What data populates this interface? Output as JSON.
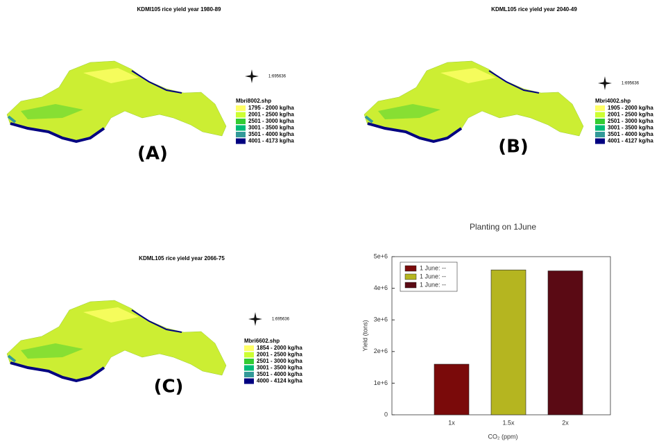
{
  "maps": [
    {
      "title": "KDMI105 rice yield year 1980-89",
      "scale": "1:695636",
      "legend_title": "Mbri8002.shp",
      "panel_label": "(A)",
      "legend": [
        {
          "label": "1795 - 2000 kg/ha",
          "color": "#ffff66"
        },
        {
          "label": "2001 - 2500 kg/ha",
          "color": "#ccff33"
        },
        {
          "label": "2501 - 3000 kg/ha",
          "color": "#33cc33"
        },
        {
          "label": "3001 - 3500 kg/ha",
          "color": "#00bb77"
        },
        {
          "label": "3501 - 4000 kg/ha",
          "color": "#339999"
        },
        {
          "label": "4001 - 4173 kg/ha",
          "color": "#000080"
        }
      ]
    },
    {
      "title": "KDML105 rice yield year 2040-49",
      "scale": "1:695636",
      "legend_title": "Mbri4002.shp",
      "panel_label": "(B)",
      "legend": [
        {
          "label": "1905 - 2000 kg/ha",
          "color": "#ffff66"
        },
        {
          "label": "2001 - 2500 kg/ha",
          "color": "#ccff33"
        },
        {
          "label": "2501 - 3000 kg/ha",
          "color": "#33cc33"
        },
        {
          "label": "3001 - 3500 kg/ha",
          "color": "#00bb77"
        },
        {
          "label": "3501 - 4000 kg/ha",
          "color": "#339999"
        },
        {
          "label": "4001 - 4127 kg/ha",
          "color": "#000080"
        }
      ]
    },
    {
      "title": "KDML105 rice yield year 2066-75",
      "scale": "1:695636",
      "legend_title": "Mbri6602.shp",
      "panel_label": "(C)",
      "legend": [
        {
          "label": "1854 - 2000 kg/ha",
          "color": "#ffff66"
        },
        {
          "label": "2001 - 2500 kg/ha",
          "color": "#ccff33"
        },
        {
          "label": "2501 - 3000 kg/ha",
          "color": "#33cc33"
        },
        {
          "label": "3001 - 3500 kg/ha",
          "color": "#00bb77"
        },
        {
          "label": "3501 - 4000 kg/ha",
          "color": "#339999"
        },
        {
          "label": "4000 - 4124 kg/ha",
          "color": "#000080"
        }
      ]
    }
  ],
  "chart_data": {
    "type": "bar",
    "title": "Planting on 1June",
    "x_label": "CO₂ (ppm)",
    "y_label": "Yield (tons)",
    "categories": [
      "1x",
      "1.5x",
      "2x"
    ],
    "series": [
      {
        "name": "1 June: --",
        "color": "#7a0a0a",
        "values": [
          1600000,
          null,
          null
        ]
      },
      {
        "name": "1 June: --",
        "color": "#b5b520",
        "values": [
          null,
          4580000,
          null
        ]
      },
      {
        "name": "1 June: --",
        "color": "#5a0a14",
        "values": [
          null,
          null,
          4550000
        ]
      }
    ],
    "ylim": [
      0,
      5000000
    ],
    "yticks": [
      0,
      {
        "value": 1000000,
        "label": "1e+6"
      },
      {
        "value": 2000000,
        "label": "2e+6"
      },
      {
        "value": 3000000,
        "label": "3e+6"
      },
      {
        "value": 4000000,
        "label": "4e+6"
      },
      {
        "value": 5000000,
        "label": "5e+6"
      }
    ],
    "legend_position": "upper left"
  }
}
